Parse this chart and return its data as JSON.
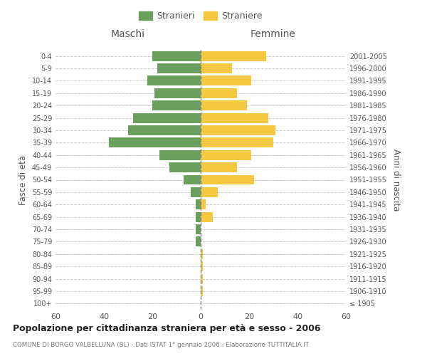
{
  "age_groups": [
    "100+",
    "95-99",
    "90-94",
    "85-89",
    "80-84",
    "75-79",
    "70-74",
    "65-69",
    "60-64",
    "55-59",
    "50-54",
    "45-49",
    "40-44",
    "35-39",
    "30-34",
    "25-29",
    "20-24",
    "15-19",
    "10-14",
    "5-9",
    "0-4"
  ],
  "birth_years": [
    "≤ 1905",
    "1906-1910",
    "1911-1915",
    "1916-1920",
    "1921-1925",
    "1926-1930",
    "1931-1935",
    "1936-1940",
    "1941-1945",
    "1946-1950",
    "1951-1955",
    "1956-1960",
    "1961-1965",
    "1966-1970",
    "1971-1975",
    "1976-1980",
    "1981-1985",
    "1986-1990",
    "1991-1995",
    "1996-2000",
    "2001-2005"
  ],
  "males": [
    0,
    0,
    0,
    0,
    0,
    2,
    2,
    2,
    2,
    4,
    7,
    13,
    17,
    38,
    30,
    28,
    20,
    19,
    22,
    18,
    20
  ],
  "females": [
    0,
    1,
    1,
    1,
    1,
    0,
    0,
    5,
    2,
    7,
    22,
    15,
    21,
    30,
    31,
    28,
    19,
    15,
    21,
    13,
    27
  ],
  "male_color": "#6a9f5e",
  "female_color": "#f5c842",
  "background_color": "#ffffff",
  "grid_color": "#cccccc",
  "title": "Popolazione per cittadinanza straniera per età e sesso - 2006",
  "subtitle": "COMUNE DI BORGO VALBELLUNA (BL) - Dati ISTAT 1° gennaio 2006 - Elaborazione TUTTITALIA.IT",
  "xlabel_left": "Maschi",
  "xlabel_right": "Femmine",
  "ylabel_left": "Fasce di età",
  "ylabel_right": "Anni di nascita",
  "legend_male": "Stranieri",
  "legend_female": "Straniere",
  "xlim": 60,
  "bar_height": 0.8
}
